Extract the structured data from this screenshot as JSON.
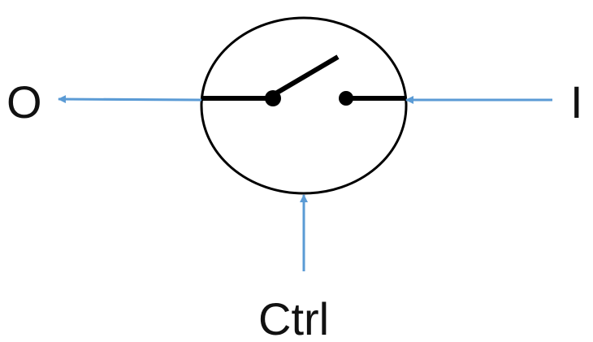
{
  "labels": {
    "output": "O",
    "input": "I",
    "control": "Ctrl"
  },
  "colors": {
    "arrow": "#5B9BD5",
    "stroke": "#000000",
    "text": "#111111",
    "background": "#ffffff"
  },
  "switch": {
    "state": "open"
  }
}
